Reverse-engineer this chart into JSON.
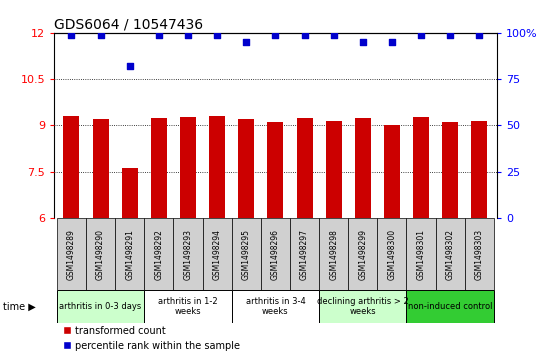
{
  "title": "GDS6064 / 10547436",
  "samples": [
    "GSM1498289",
    "GSM1498290",
    "GSM1498291",
    "GSM1498292",
    "GSM1498293",
    "GSM1498294",
    "GSM1498295",
    "GSM1498296",
    "GSM1498297",
    "GSM1498298",
    "GSM1498299",
    "GSM1498300",
    "GSM1498301",
    "GSM1498302",
    "GSM1498303"
  ],
  "bar_values": [
    9.3,
    9.2,
    7.6,
    9.25,
    9.28,
    9.3,
    9.2,
    9.1,
    9.25,
    9.15,
    9.22,
    9.0,
    9.28,
    9.1,
    9.15
  ],
  "dot_values": [
    99,
    99,
    82,
    99,
    99,
    99,
    95,
    99,
    99,
    99,
    95,
    95,
    99,
    99,
    99
  ],
  "bar_color": "#cc0000",
  "dot_color": "#0000cc",
  "ylim_left": [
    6,
    12
  ],
  "ylim_right": [
    0,
    100
  ],
  "yticks_left": [
    6,
    7.5,
    9,
    10.5,
    12
  ],
  "yticks_right": [
    0,
    25,
    50,
    75,
    100
  ],
  "groups": [
    {
      "label": "arthritis in 0-3 days",
      "start": 0,
      "end": 3,
      "color": "#ccffcc"
    },
    {
      "label": "arthritis in 1-2\nweeks",
      "start": 3,
      "end": 6,
      "color": "#ffffff"
    },
    {
      "label": "arthritis in 3-4\nweeks",
      "start": 6,
      "end": 9,
      "color": "#ffffff"
    },
    {
      "label": "declining arthritis > 2\nweeks",
      "start": 9,
      "end": 12,
      "color": "#ccffcc"
    },
    {
      "label": "non-induced control",
      "start": 12,
      "end": 15,
      "color": "#33cc33"
    }
  ],
  "legend_red_label": "transformed count",
  "legend_blue_label": "percentile rank within the sample",
  "title_fontsize": 10,
  "tick_fontsize": 8,
  "bar_width": 0.55,
  "sample_box_color": "#d0d0d0",
  "sample_box_color2": "#c8c8c8"
}
